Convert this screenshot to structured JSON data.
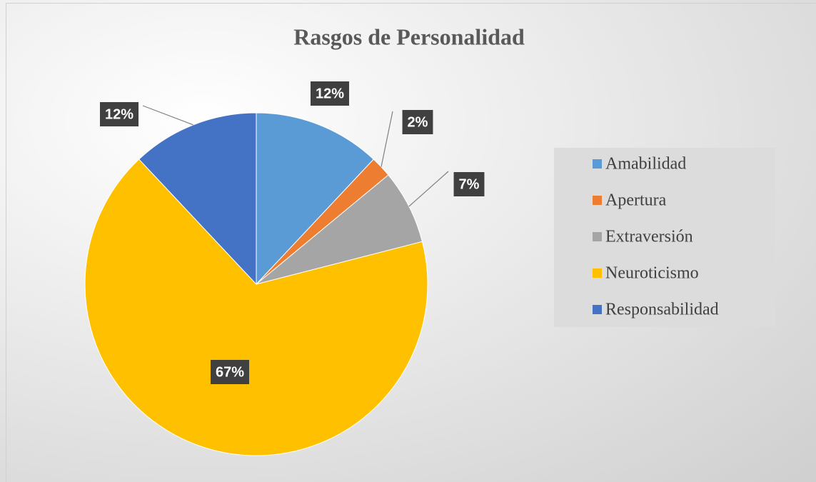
{
  "chart_data": {
    "type": "pie",
    "title": "Rasgos de Personalidad",
    "categories": [
      "Amabilidad",
      "Apertura",
      "Extraversión",
      "Neuroticismo",
      "Responsabilidad"
    ],
    "values": [
      12,
      2,
      7,
      67,
      12
    ],
    "value_labels": [
      "12%",
      "2%",
      "7%",
      "67%",
      "12%"
    ],
    "colors": [
      "#5b9bd5",
      "#ed7d31",
      "#a5a5a5",
      "#ffc000",
      "#4472c4"
    ],
    "legend": "right"
  }
}
